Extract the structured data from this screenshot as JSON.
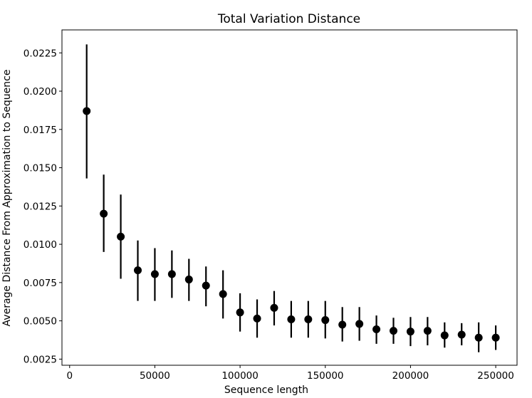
{
  "chart_data": {
    "type": "scatter",
    "title": "Total Variation Distance",
    "xlabel": "Sequence length",
    "ylabel": "Average Distance From Approximation to Sequence",
    "xlim": [
      -4500,
      262500
    ],
    "ylim": [
      0.0021,
      0.024
    ],
    "grid": false,
    "legend": "none",
    "xticks": [
      0,
      50000,
      100000,
      150000,
      200000,
      250000
    ],
    "xtick_labels": [
      "0",
      "50000",
      "100000",
      "150000",
      "200000",
      "250000"
    ],
    "yticks": [
      0.0025,
      0.005,
      0.0075,
      0.01,
      0.0125,
      0.015,
      0.0175,
      0.02,
      0.0225
    ],
    "ytick_labels": [
      "0.0025",
      "0.0050",
      "0.0075",
      "0.0100",
      "0.0125",
      "0.0150",
      "0.0175",
      "0.0200",
      "0.0225"
    ],
    "marker_color": "#000000",
    "points": [
      {
        "x": 10000,
        "y": 0.0187,
        "err_low": 0.0143,
        "err_high": 0.02305
      },
      {
        "x": 20000,
        "y": 0.012,
        "err_low": 0.0095,
        "err_high": 0.01455
      },
      {
        "x": 30000,
        "y": 0.0105,
        "err_low": 0.00775,
        "err_high": 0.01325
      },
      {
        "x": 40000,
        "y": 0.0083,
        "err_low": 0.0063,
        "err_high": 0.01025
      },
      {
        "x": 50000,
        "y": 0.00805,
        "err_low": 0.0063,
        "err_high": 0.00975
      },
      {
        "x": 60000,
        "y": 0.00805,
        "err_low": 0.0065,
        "err_high": 0.0096
      },
      {
        "x": 70000,
        "y": 0.0077,
        "err_low": 0.0063,
        "err_high": 0.00905
      },
      {
        "x": 80000,
        "y": 0.0073,
        "err_low": 0.00595,
        "err_high": 0.00855
      },
      {
        "x": 90000,
        "y": 0.00675,
        "err_low": 0.00515,
        "err_high": 0.0083
      },
      {
        "x": 100000,
        "y": 0.00555,
        "err_low": 0.0043,
        "err_high": 0.0068
      },
      {
        "x": 110000,
        "y": 0.00515,
        "err_low": 0.0039,
        "err_high": 0.0064
      },
      {
        "x": 120000,
        "y": 0.00585,
        "err_low": 0.0047,
        "err_high": 0.00695
      },
      {
        "x": 130000,
        "y": 0.0051,
        "err_low": 0.0039,
        "err_high": 0.0063
      },
      {
        "x": 140000,
        "y": 0.0051,
        "err_low": 0.0039,
        "err_high": 0.0063
      },
      {
        "x": 150000,
        "y": 0.00505,
        "err_low": 0.00385,
        "err_high": 0.0063
      },
      {
        "x": 160000,
        "y": 0.00475,
        "err_low": 0.00365,
        "err_high": 0.0059
      },
      {
        "x": 170000,
        "y": 0.0048,
        "err_low": 0.0037,
        "err_high": 0.0059
      },
      {
        "x": 180000,
        "y": 0.00445,
        "err_low": 0.0035,
        "err_high": 0.00535
      },
      {
        "x": 190000,
        "y": 0.00435,
        "err_low": 0.0035,
        "err_high": 0.0052
      },
      {
        "x": 200000,
        "y": 0.0043,
        "err_low": 0.00335,
        "err_high": 0.00525
      },
      {
        "x": 210000,
        "y": 0.00435,
        "err_low": 0.0034,
        "err_high": 0.00525
      },
      {
        "x": 220000,
        "y": 0.00405,
        "err_low": 0.00325,
        "err_high": 0.0049
      },
      {
        "x": 230000,
        "y": 0.0041,
        "err_low": 0.0034,
        "err_high": 0.00485
      },
      {
        "x": 240000,
        "y": 0.0039,
        "err_low": 0.00295,
        "err_high": 0.0049
      },
      {
        "x": 250000,
        "y": 0.0039,
        "err_low": 0.0031,
        "err_high": 0.0047
      }
    ]
  }
}
